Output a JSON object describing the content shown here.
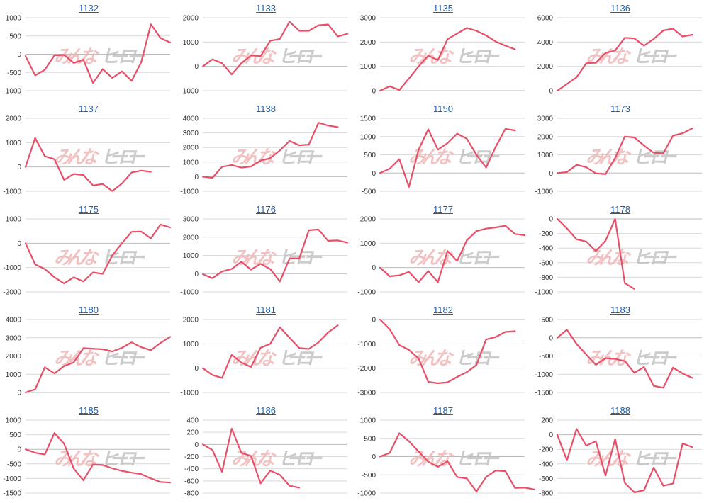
{
  "colors": {
    "line": "#e8506a",
    "grid": "#d9d9d9",
    "axis": "#bbbbbb",
    "title": "#1a5fb4",
    "watermark_left": "#f0b8b8",
    "watermark_right": "#c4c4c4"
  },
  "watermark": {
    "left": "みんな",
    "right": "ヒーロー"
  },
  "chart_data": [
    {
      "type": "line",
      "title": "1132",
      "ylim": [
        -1000,
        1000
      ],
      "yticks": [
        -1000,
        -500,
        0,
        500,
        1000
      ],
      "series": [
        {
          "values": [
            -50,
            -580,
            -430,
            -30,
            -20,
            -240,
            -150,
            -790,
            -410,
            -650,
            -470,
            -730,
            -220,
            820,
            440,
            320
          ]
        }
      ]
    },
    {
      "type": "line",
      "title": "1133",
      "ylim": [
        -1000,
        2000
      ],
      "yticks": [
        -1000,
        0,
        1000,
        2000
      ],
      "series": [
        {
          "values": [
            0,
            290,
            130,
            -330,
            120,
            450,
            420,
            1050,
            1130,
            1840,
            1460,
            1460,
            1690,
            1720,
            1230,
            1340
          ]
        }
      ]
    },
    {
      "type": "line",
      "title": "1135",
      "ylim": [
        0,
        3000
      ],
      "yticks": [
        0,
        1000,
        2000,
        3000
      ],
      "series": [
        {
          "values": [
            0,
            180,
            30,
            500,
            1000,
            1440,
            1260,
            2120,
            2350,
            2580,
            2460,
            2270,
            2020,
            1850,
            1700
          ]
        }
      ]
    },
    {
      "type": "line",
      "title": "1136",
      "ylim": [
        0,
        6000
      ],
      "yticks": [
        0,
        2000,
        4000,
        6000
      ],
      "series": [
        {
          "values": [
            0,
            550,
            1100,
            2250,
            2300,
            3100,
            3300,
            4350,
            4300,
            3700,
            4250,
            4950,
            5100,
            4450,
            4600
          ]
        }
      ]
    },
    {
      "type": "line",
      "title": "1137",
      "ylim": [
        -1000,
        2000
      ],
      "yticks": [
        -1000,
        0,
        1000,
        2000
      ],
      "series": [
        {
          "values": [
            0,
            1190,
            440,
            320,
            -530,
            -290,
            -330,
            -760,
            -700,
            -990,
            -680,
            -230,
            -150,
            -200
          ]
        }
      ]
    },
    {
      "type": "line",
      "title": "1138",
      "ylim": [
        -1000,
        4000
      ],
      "yticks": [
        -1000,
        0,
        1000,
        2000,
        3000,
        4000
      ],
      "series": [
        {
          "values": [
            0,
            -80,
            680,
            800,
            620,
            700,
            1100,
            1270,
            1800,
            2450,
            2150,
            2200,
            3700,
            3500,
            3400
          ]
        }
      ]
    },
    {
      "type": "line",
      "title": "1150",
      "ylim": [
        -500,
        1500
      ],
      "yticks": [
        -500,
        0,
        500,
        1000,
        1500
      ],
      "series": [
        {
          "values": [
            0,
            120,
            380,
            -380,
            640,
            1200,
            640,
            820,
            1080,
            940,
            500,
            150,
            720,
            1210,
            1170
          ]
        }
      ]
    },
    {
      "type": "line",
      "title": "1173",
      "ylim": [
        -1000,
        3000
      ],
      "yticks": [
        -1000,
        0,
        1000,
        2000,
        3000
      ],
      "series": [
        {
          "values": [
            0,
            50,
            450,
            320,
            -20,
            -60,
            820,
            2000,
            1950,
            1500,
            1110,
            1080,
            2050,
            2180,
            2450
          ]
        }
      ]
    },
    {
      "type": "line",
      "title": "1175",
      "ylim": [
        -2000,
        1000
      ],
      "yticks": [
        -2000,
        -1000,
        0,
        1000
      ],
      "series": [
        {
          "values": [
            0,
            -870,
            -1060,
            -1400,
            -1650,
            -1400,
            -1570,
            -1200,
            -1260,
            -500,
            0,
            470,
            480,
            200,
            770,
            650
          ]
        }
      ]
    },
    {
      "type": "line",
      "title": "1176",
      "ylim": [
        -1000,
        3000
      ],
      "yticks": [
        -1000,
        0,
        1000,
        2000,
        3000
      ],
      "series": [
        {
          "values": [
            -30,
            -250,
            120,
            260,
            650,
            220,
            540,
            250,
            -430,
            830,
            820,
            2380,
            2420,
            1800,
            1820,
            1700
          ]
        }
      ]
    },
    {
      "type": "line",
      "title": "1177",
      "ylim": [
        -1000,
        2000
      ],
      "yticks": [
        -1000,
        0,
        1000,
        2000
      ],
      "series": [
        {
          "values": [
            0,
            -360,
            -320,
            -180,
            -600,
            -140,
            -600,
            680,
            270,
            1120,
            1500,
            1600,
            1650,
            1720,
            1380,
            1330
          ]
        }
      ]
    },
    {
      "type": "line",
      "title": "1178",
      "ylim": [
        -1000,
        0
      ],
      "yticks": [
        -1000,
        -800,
        -600,
        -400,
        -200,
        0
      ],
      "series": [
        {
          "values": [
            0,
            -130,
            -280,
            -310,
            -440,
            -300,
            0,
            -880,
            -960
          ]
        }
      ]
    },
    {
      "type": "line",
      "title": "1180",
      "ylim": [
        0,
        4000
      ],
      "yticks": [
        0,
        1000,
        2000,
        3000,
        4000
      ],
      "series": [
        {
          "values": [
            0,
            180,
            1380,
            1050,
            1450,
            1650,
            2430,
            2400,
            2370,
            2250,
            2450,
            2750,
            2480,
            2320,
            2720,
            3050
          ]
        }
      ]
    },
    {
      "type": "line",
      "title": "1181",
      "ylim": [
        -1000,
        2000
      ],
      "yticks": [
        -1000,
        0,
        1000,
        2000
      ],
      "series": [
        {
          "values": [
            0,
            -280,
            -400,
            550,
            230,
            50,
            840,
            1000,
            1680,
            1250,
            830,
            790,
            1060,
            1470,
            1760
          ]
        }
      ]
    },
    {
      "type": "line",
      "title": "1182",
      "ylim": [
        -3000,
        0
      ],
      "yticks": [
        -3000,
        -2000,
        -1000,
        0
      ],
      "series": [
        {
          "values": [
            0,
            -400,
            -1050,
            -1250,
            -1600,
            -2560,
            -2620,
            -2580,
            -2360,
            -2160,
            -1870,
            -820,
            -720,
            -510,
            -480
          ]
        }
      ]
    },
    {
      "type": "line",
      "title": "1183",
      "ylim": [
        -1500,
        500
      ],
      "yticks": [
        -1500,
        -1000,
        -500,
        0,
        500
      ],
      "series": [
        {
          "values": [
            0,
            220,
            -170,
            -460,
            -740,
            -560,
            -580,
            -640,
            -960,
            -800,
            -1320,
            -1370,
            -820,
            -980,
            -1100
          ]
        }
      ]
    },
    {
      "type": "line",
      "title": "1185",
      "ylim": [
        -1500,
        1000
      ],
      "yticks": [
        -1500,
        -1000,
        -500,
        0,
        500,
        1000
      ],
      "series": [
        {
          "values": [
            0,
            -120,
            -180,
            560,
            190,
            -660,
            -1060,
            -520,
            -540,
            -650,
            -740,
            -800,
            -850,
            -1000,
            -1120,
            -1140
          ]
        }
      ]
    },
    {
      "type": "line",
      "title": "1186",
      "ylim": [
        -800,
        400
      ],
      "yticks": [
        -800,
        -600,
        -400,
        -200,
        0,
        200,
        400
      ],
      "series": [
        {
          "values": [
            0,
            -90,
            -450,
            260,
            -140,
            -190,
            -640,
            -430,
            -500,
            -680,
            -710
          ]
        }
      ]
    },
    {
      "type": "line",
      "title": "1187",
      "ylim": [
        -1000,
        1000
      ],
      "yticks": [
        -1000,
        -500,
        0,
        500,
        1000
      ],
      "series": [
        {
          "values": [
            0,
            100,
            640,
            420,
            140,
            -140,
            -280,
            -130,
            -560,
            -600,
            -960,
            -560,
            -380,
            -400,
            -860,
            -850,
            -900
          ]
        }
      ]
    },
    {
      "type": "line",
      "title": "1188",
      "ylim": [
        -800,
        200
      ],
      "yticks": [
        -800,
        -600,
        -400,
        -200,
        0,
        200
      ],
      "series": [
        {
          "values": [
            0,
            -350,
            80,
            -150,
            -90,
            -560,
            -60,
            -660,
            -790,
            -760,
            -450,
            -700,
            -670,
            -120,
            -170
          ]
        }
      ]
    }
  ]
}
